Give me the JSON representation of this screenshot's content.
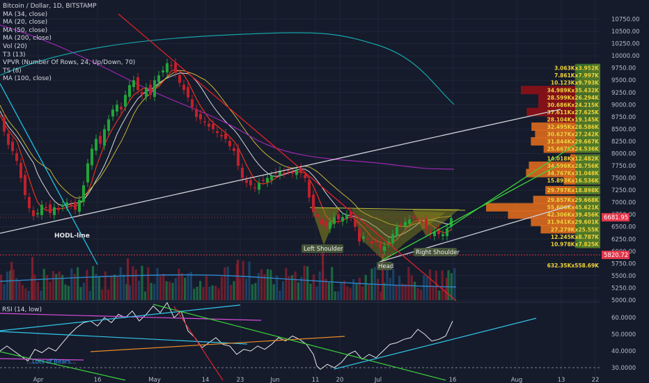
{
  "header": {
    "title": "Bitcoin / Dollar, 1D, BITSTAMP",
    "indicators": [
      "MA (34, close)",
      "MA (20, close)",
      "MA (50, close)",
      "MA (200, close)",
      "Vol (20)",
      "T3 (13)",
      "VPVR (Number Of Rows, 24, Up/Down, 70)",
      "TS (8)",
      "MA (100, close)"
    ]
  },
  "price_axis": {
    "ticks": [
      10750,
      10500,
      10250,
      10000,
      9750,
      9500,
      9250,
      9000,
      8750,
      8500,
      8250,
      8000,
      7750,
      7500,
      7250,
      7000,
      6750,
      6500,
      6250,
      6000,
      5750,
      5500,
      5250,
      5000
    ],
    "labels": [
      "10750.00",
      "10500.00",
      "10250.00",
      "10000.00",
      "9750.00",
      "9500.00",
      "9250.00",
      "9000.00",
      "8750.00",
      "8500.00",
      "8250.00",
      "8000.00",
      "7750.00",
      "7500.00",
      "7250.00",
      "7000.00",
      "6750.00",
      "6500.00",
      "6250.00",
      "6000.00",
      "5750.00",
      "5500.00",
      "5250.00",
      "5000.00"
    ],
    "current_price": {
      "value": 6681.95,
      "label": "6681.95",
      "color": "#e0364a"
    },
    "support_price": {
      "value": 5820.72,
      "label": "5820.72",
      "color": "#e0364a"
    }
  },
  "rsi_axis": {
    "title": "RSI (14, low)",
    "ticks": [
      60,
      50,
      40,
      30
    ],
    "labels": [
      "60.0000",
      "50.0000",
      "40.0000",
      "30.0000"
    ]
  },
  "time_axis": {
    "labels": [
      "Apr",
      "16",
      "May",
      "14",
      "23",
      "Jun",
      "11",
      "20",
      "Jul",
      "16",
      "Aug",
      "13",
      "22"
    ]
  },
  "annotations": {
    "hodl_line": "HODL-line",
    "left_shoulder": "Left Shoulder",
    "head": "Head",
    "right_shoulder": "Right Shoulder",
    "lots_of_bears": "...Lots of Bears..."
  },
  "volume_profile": {
    "labels": [
      "3.063Kx3.952K",
      "7.861Kx7.997K",
      "10.123Kx9.793K",
      "34.989Kx35.432K",
      "28.599Kx26.294K",
      "30.686Kx24.215K",
      "37.611Kx27.625K",
      "28.104Kx19.145K",
      "32.495Kx28.586K",
      "30.627Kx27.242K",
      "31.844Kx29.667K",
      "25.667Kx24.536K",
      "14.018Kx12.482K",
      "34.596Kx28.756K",
      "34.767Kx31.048K",
      "15.893Kx16.536K",
      "29.797Kx18.898K",
      "29.857Kx29.668K",
      "55.606Kx45.621K",
      "42.306Kx39.456K",
      "31.941Kx29.601K",
      "27.279Kx25.55K",
      "12.245Kx8.787K",
      "10.978Kx7.825K",
      "632.35Kx558.69K"
    ]
  },
  "colors": {
    "background": "#151b2b",
    "up": "#22a33a",
    "down": "#c0202c",
    "ma34": "#d8d9dc",
    "ma20": "#e8321f",
    "ma50": "#c9b537",
    "ma200": "#17a3a8",
    "ma100": "#9c27b0",
    "vp_orange": "#d8691e",
    "vp_red": "#8a1018",
    "vp_green": "#3f7a2a",
    "volume_blue": "#1e4e78",
    "volume_green": "#1f7f48",
    "volume_red": "#8e1f2e"
  },
  "chart_data": {
    "type": "candlestick",
    "title": "Bitcoin / Dollar, 1D, BITSTAMP",
    "price_range": [
      5000,
      10900
    ],
    "rsi_range": [
      25,
      68
    ],
    "close_path": [
      [
        0,
        8790
      ],
      [
        6,
        8450
      ],
      [
        12,
        8180
      ],
      [
        18,
        8050
      ],
      [
        24,
        7850
      ],
      [
        30,
        7500
      ],
      [
        36,
        7150
      ],
      [
        42,
        6880
      ],
      [
        48,
        6720
      ],
      [
        54,
        6780
      ],
      [
        60,
        6950
      ],
      [
        66,
        6900
      ],
      [
        72,
        6780
      ],
      [
        78,
        6900
      ],
      [
        84,
        6850
      ],
      [
        90,
        6950
      ],
      [
        96,
        7000
      ],
      [
        102,
        6950
      ],
      [
        108,
        6850
      ],
      [
        114,
        7050
      ],
      [
        120,
        7350
      ],
      [
        126,
        7800
      ],
      [
        132,
        8100
      ],
      [
        138,
        8300
      ],
      [
        144,
        8200
      ],
      [
        150,
        8500
      ],
      [
        156,
        8700
      ],
      [
        162,
        8900
      ],
      [
        168,
        9000
      ],
      [
        174,
        8900
      ],
      [
        180,
        9200
      ],
      [
        186,
        9400
      ],
      [
        192,
        9500
      ],
      [
        198,
        9300
      ],
      [
        204,
        9200
      ],
      [
        210,
        9350
      ],
      [
        216,
        9200
      ],
      [
        222,
        9500
      ],
      [
        228,
        9600
      ],
      [
        234,
        9700
      ],
      [
        240,
        9850
      ],
      [
        246,
        9800
      ],
      [
        252,
        9650
      ],
      [
        258,
        9450
      ],
      [
        264,
        9300
      ],
      [
        270,
        9150
      ],
      [
        276,
        8950
      ],
      [
        282,
        8750
      ],
      [
        288,
        8700
      ],
      [
        294,
        8650
      ],
      [
        300,
        8550
      ],
      [
        306,
        8500
      ],
      [
        312,
        8420
      ],
      [
        318,
        8350
      ],
      [
        324,
        8300
      ],
      [
        330,
        8150
      ],
      [
        336,
        8050
      ],
      [
        342,
        7750
      ],
      [
        348,
        7500
      ],
      [
        354,
        7400
      ],
      [
        360,
        7350
      ],
      [
        366,
        7300
      ],
      [
        372,
        7400
      ],
      [
        378,
        7450
      ],
      [
        384,
        7500
      ],
      [
        390,
        7550
      ],
      [
        396,
        7600
      ],
      [
        402,
        7650
      ],
      [
        408,
        7600
      ],
      [
        414,
        7650
      ],
      [
        420,
        7600
      ],
      [
        426,
        7650
      ],
      [
        432,
        7600
      ],
      [
        438,
        7500
      ],
      [
        444,
        7100
      ],
      [
        450,
        6800
      ],
      [
        456,
        6700
      ],
      [
        462,
        6550
      ],
      [
        468,
        6500
      ],
      [
        474,
        6600
      ],
      [
        480,
        6700
      ],
      [
        486,
        6650
      ],
      [
        492,
        6700
      ],
      [
        498,
        6750
      ],
      [
        504,
        6700
      ],
      [
        510,
        6500
      ],
      [
        516,
        6200
      ],
      [
        522,
        6300
      ],
      [
        528,
        6250
      ],
      [
        534,
        6150
      ],
      [
        540,
        6200
      ],
      [
        546,
        6050
      ],
      [
        552,
        6100
      ],
      [
        558,
        6200
      ],
      [
        564,
        6350
      ],
      [
        570,
        6500
      ],
      [
        576,
        6550
      ],
      [
        582,
        6600
      ],
      [
        588,
        6650
      ],
      [
        594,
        6700
      ],
      [
        600,
        6650
      ],
      [
        606,
        6600
      ],
      [
        612,
        6450
      ],
      [
        618,
        6350
      ],
      [
        624,
        6400
      ],
      [
        630,
        6350
      ],
      [
        636,
        6350
      ],
      [
        642,
        6450
      ],
      [
        648,
        6682
      ]
    ],
    "rsi_path": [
      [
        0,
        40
      ],
      [
        10,
        43
      ],
      [
        20,
        40
      ],
      [
        30,
        37
      ],
      [
        40,
        34
      ],
      [
        50,
        41
      ],
      [
        60,
        39
      ],
      [
        70,
        42
      ],
      [
        80,
        40
      ],
      [
        90,
        45
      ],
      [
        100,
        50
      ],
      [
        110,
        54
      ],
      [
        120,
        57
      ],
      [
        130,
        58
      ],
      [
        140,
        55
      ],
      [
        150,
        60
      ],
      [
        160,
        57
      ],
      [
        170,
        62
      ],
      [
        180,
        60
      ],
      [
        190,
        64
      ],
      [
        200,
        58
      ],
      [
        210,
        62
      ],
      [
        220,
        67
      ],
      [
        230,
        63
      ],
      [
        240,
        69
      ],
      [
        250,
        60
      ],
      [
        260,
        64
      ],
      [
        270,
        52
      ],
      [
        280,
        48
      ],
      [
        290,
        42
      ],
      [
        300,
        45
      ],
      [
        310,
        48
      ],
      [
        320,
        44
      ],
      [
        330,
        43
      ],
      [
        340,
        38
      ],
      [
        350,
        41
      ],
      [
        360,
        40
      ],
      [
        370,
        43
      ],
      [
        380,
        41
      ],
      [
        390,
        44
      ],
      [
        400,
        48
      ],
      [
        410,
        46
      ],
      [
        420,
        49
      ],
      [
        430,
        47
      ],
      [
        440,
        44
      ],
      [
        450,
        38
      ],
      [
        455,
        31
      ],
      [
        460,
        29
      ],
      [
        470,
        32
      ],
      [
        480,
        30
      ],
      [
        490,
        33
      ],
      [
        500,
        38
      ],
      [
        510,
        40
      ],
      [
        520,
        35
      ],
      [
        530,
        38
      ],
      [
        540,
        36
      ],
      [
        550,
        40
      ],
      [
        560,
        44
      ],
      [
        570,
        45
      ],
      [
        580,
        47
      ],
      [
        590,
        48
      ],
      [
        600,
        53
      ],
      [
        610,
        50
      ],
      [
        620,
        46
      ],
      [
        630,
        47
      ],
      [
        640,
        49
      ],
      [
        650,
        58
      ]
    ],
    "volume_profile_levels": [
      {
        "price": 9750,
        "label": "3.063Kx3.952K",
        "total": 7.0,
        "color": "orange"
      },
      {
        "price": 9600,
        "label": "7.861Kx7.997K",
        "total": 15.9,
        "color": "orange"
      },
      {
        "price": 9450,
        "label": "10.123Kx9.793K",
        "total": 19.9,
        "color": "orange"
      },
      {
        "price": 9300,
        "label": "34.989Kx35.432K",
        "total": 70.4,
        "color": "red"
      },
      {
        "price": 9150,
        "label": "28.599Kx26.294K",
        "total": 54.9,
        "color": "red"
      },
      {
        "price": 9000,
        "label": "30.686Kx24.215K",
        "total": 54.9,
        "color": "red"
      },
      {
        "price": 8850,
        "label": "37.611Kx27.625K",
        "total": 65.2,
        "color": "red"
      },
      {
        "price": 8700,
        "label": "28.104Kx19.145K",
        "total": 47.2,
        "color": "red"
      },
      {
        "price": 8550,
        "label": "32.495Kx28.586K",
        "total": 61.0,
        "color": "orange"
      },
      {
        "price": 8400,
        "label": "30.627Kx27.242K",
        "total": 57.8,
        "color": "orange"
      },
      {
        "price": 8250,
        "label": "31.844Kx29.667K",
        "total": 61.5,
        "color": "orange"
      },
      {
        "price": 8100,
        "label": "25.667Kx24.536K",
        "total": 50.2,
        "color": "orange"
      },
      {
        "price": 7900,
        "label": "14.018Kx12.482K",
        "total": 26.5,
        "color": "orange"
      },
      {
        "price": 7750,
        "label": "34.596Kx28.756K",
        "total": 63.3,
        "color": "orange"
      },
      {
        "price": 7600,
        "label": "34.767Kx31.048K",
        "total": 65.8,
        "color": "orange"
      },
      {
        "price": 7450,
        "label": "15.893Kx16.536K",
        "total": 32.4,
        "color": "orange"
      },
      {
        "price": 7250,
        "label": "29.797Kx18.898K",
        "total": 48.7,
        "color": "orange"
      },
      {
        "price": 7050,
        "label": "29.857Kx29.668K",
        "total": 59.5,
        "color": "orange"
      },
      {
        "price": 6900,
        "label": "55.606Kx45.621K",
        "total": 101.2,
        "color": "orange"
      },
      {
        "price": 6750,
        "label": "42.306Kx39.456K",
        "total": 81.8,
        "color": "orange"
      },
      {
        "price": 6600,
        "label": "31.941Kx29.601K",
        "total": 61.5,
        "color": "orange"
      },
      {
        "price": 6450,
        "label": "27.279Kx25.55K",
        "total": 52.8,
        "color": "orange"
      },
      {
        "price": 6300,
        "label": "12.245Kx8.787K",
        "total": 21.0,
        "color": "orange"
      },
      {
        "price": 6150,
        "label": "10.978Kx7.825K",
        "total": 18.8,
        "color": "orange"
      }
    ]
  }
}
